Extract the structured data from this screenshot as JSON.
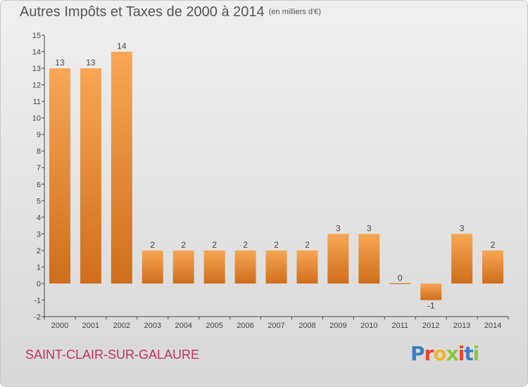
{
  "header": {
    "title": "Autres Impôts et Taxes de 2000 à 2014",
    "unit": "(en milliers d'€)"
  },
  "footer": {
    "town": "SAINT-CLAIR-SUR-GALAURE",
    "logo": "Proxiti",
    "logo_colors": [
      "#3d7fc1",
      "#e8462f",
      "#f0b62d",
      "#8cc63f",
      "#e8462f",
      "#3d7fc1",
      "#8cc63f"
    ]
  },
  "chart_data": {
    "type": "bar",
    "categories": [
      "2000",
      "2001",
      "2002",
      "2003",
      "2004",
      "2005",
      "2006",
      "2007",
      "2008",
      "2009",
      "2010",
      "2011",
      "2012",
      "2013",
      "2014"
    ],
    "values": [
      13,
      13,
      14,
      2,
      2,
      2,
      2,
      2,
      2,
      3,
      3,
      0,
      -1,
      3,
      2
    ],
    "data_labels": [
      "13",
      "13",
      "14",
      "2",
      "2",
      "2",
      "2",
      "2",
      "2",
      "3",
      "3",
      "0",
      "-1",
      "3",
      "2"
    ],
    "y_ticks": [
      "-2",
      "-1",
      "0",
      "1",
      "2",
      "3",
      "4",
      "5",
      "6",
      "7",
      "8",
      "9",
      "10",
      "11",
      "12",
      "13",
      "14",
      "15"
    ],
    "ylim": [
      -2,
      15
    ],
    "grid": false,
    "colors": {
      "bar_light": "#f7a755",
      "bar_dark": "#cf6e1c",
      "axis": "#444444",
      "label": "#444444"
    }
  }
}
